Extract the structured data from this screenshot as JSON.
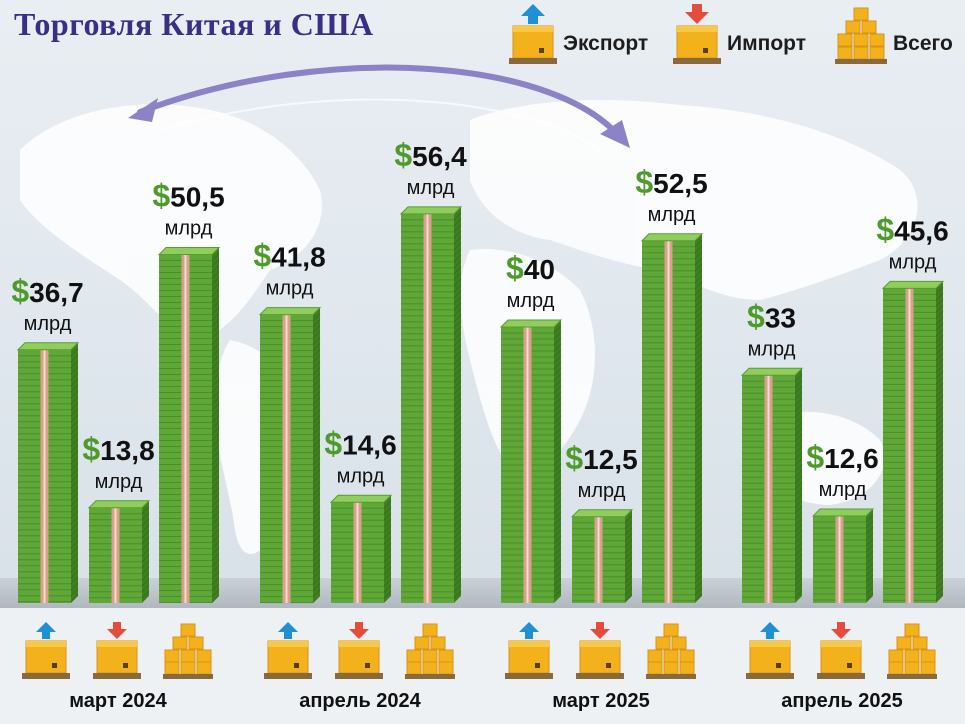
{
  "title": "Торговля Китая и США",
  "legend": [
    {
      "key": "export",
      "label": "Экспорт",
      "icon": "box-arrow-up-icon"
    },
    {
      "key": "import",
      "label": "Импорт",
      "icon": "box-arrow-down-icon"
    },
    {
      "key": "total",
      "label": "Всего",
      "icon": "stacked-boxes-icon"
    }
  ],
  "colors": {
    "title": "#3b2e86",
    "money_green": "#5fa737",
    "money_dark": "#3f7f22",
    "band": "#d9a08c",
    "dollar": "#4f9a2c",
    "box": "#f3b21b",
    "arrow_up": "#1f8fd6",
    "arrow_down": "#e64c3c"
  },
  "chart_data": {
    "type": "bar",
    "title": "Торговля Китая и США",
    "categories": [
      "март 2024",
      "апрель 2024",
      "март 2025",
      "апрель 2025"
    ],
    "series": [
      {
        "name": "Экспорт",
        "values": [
          36.7,
          41.8,
          40,
          33
        ],
        "labels": [
          "36,7",
          "41,8",
          "40",
          "33"
        ]
      },
      {
        "name": "Импорт",
        "values": [
          13.8,
          14.6,
          12.5,
          12.6
        ],
        "labels": [
          "13,8",
          "14,6",
          "12,5",
          "12,6"
        ]
      },
      {
        "name": "Всего",
        "values": [
          50.5,
          56.4,
          52.5,
          45.6
        ],
        "labels": [
          "50,5",
          "56,4",
          "52,5",
          "45,6"
        ]
      }
    ],
    "currency_symbol": "$",
    "unit": "млрд",
    "ylim": [
      0,
      60
    ],
    "grid": false,
    "legend_position": "top-right"
  }
}
